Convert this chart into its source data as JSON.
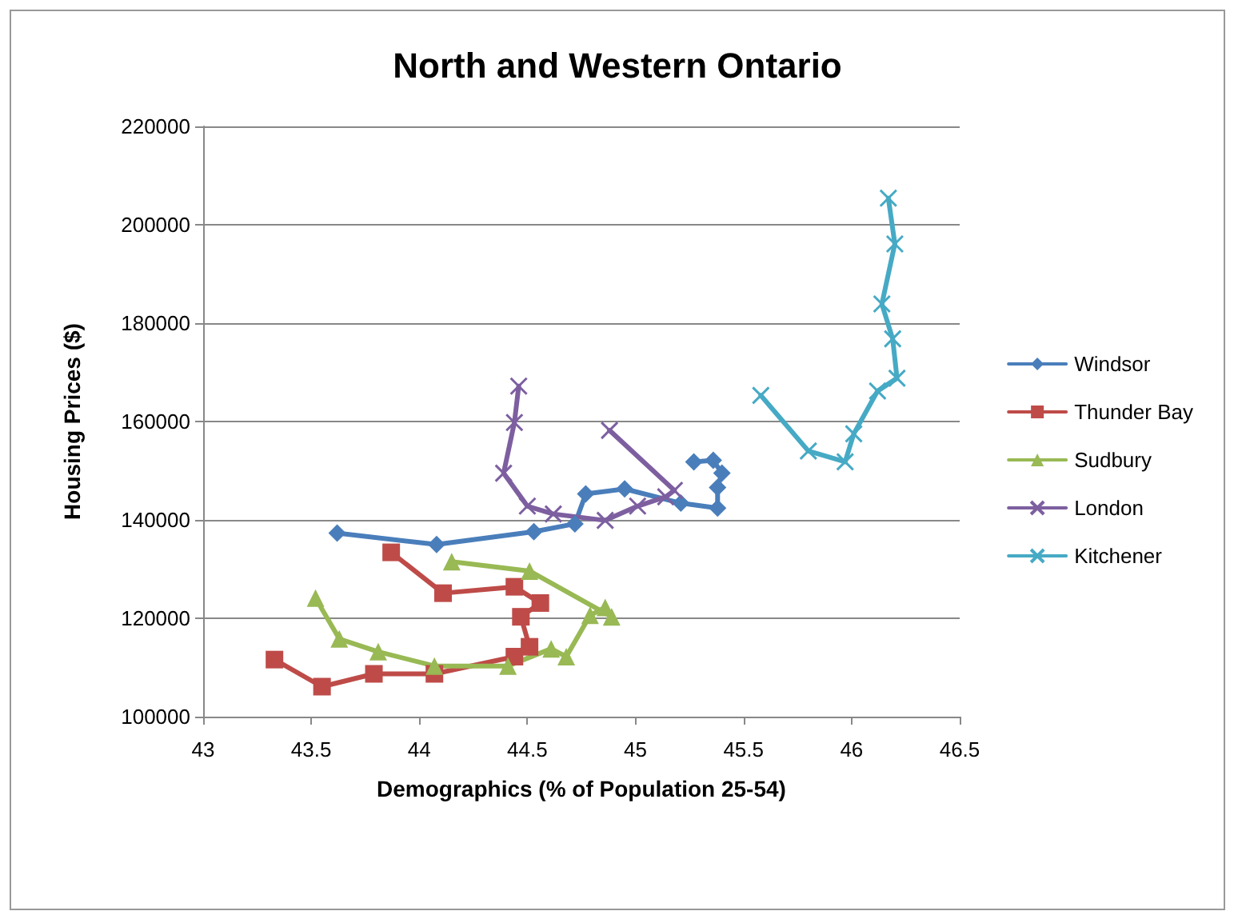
{
  "chart_data": {
    "type": "line",
    "title": "North and Western Ontario",
    "xlabel": "Demographics (% of Population 25-54)",
    "ylabel": "Housing Prices ($)",
    "xlim": [
      43,
      46.5
    ],
    "xticks": [
      43,
      43.5,
      44,
      44.5,
      45,
      45.5,
      46,
      46.5
    ],
    "ylim": [
      100000,
      220000
    ],
    "yticks": [
      100000,
      120000,
      140000,
      160000,
      180000,
      200000,
      220000
    ],
    "grid": "y",
    "legend": "right",
    "series": [
      {
        "name": "Windsor",
        "color": "#4a7ebb",
        "marker": "diamond",
        "x": [
          43.62,
          44.08,
          44.53,
          44.72,
          44.77,
          44.95,
          45.21,
          45.38,
          45.38,
          45.4,
          45.36,
          45.27
        ],
        "values": [
          137300,
          135000,
          137600,
          139200,
          145300,
          146300,
          143400,
          142400,
          146600,
          149500,
          152100,
          151800
        ]
      },
      {
        "name": "Thunder Bay",
        "color": "#be4b48",
        "marker": "square",
        "x": [
          43.33,
          43.55,
          43.79,
          44.07,
          44.44,
          44.51,
          44.47,
          44.56,
          44.44,
          44.11,
          43.87
        ],
        "values": [
          111600,
          106100,
          108700,
          108700,
          112200,
          114200,
          120300,
          123100,
          126400,
          125100,
          133400
        ]
      },
      {
        "name": "Sudbury",
        "color": "#98b954",
        "marker": "triangle",
        "x": [
          43.52,
          43.63,
          43.81,
          44.07,
          44.41,
          44.61,
          44.68,
          44.79,
          44.86,
          44.89,
          44.51,
          44.15
        ],
        "values": [
          124100,
          115800,
          113200,
          110300,
          110300,
          113800,
          112200,
          120600,
          122200,
          120300,
          129600,
          131500
        ]
      },
      {
        "name": "London",
        "color": "#7d5fa0",
        "marker": "cross",
        "x": [
          44.46,
          44.44,
          44.39,
          44.5,
          44.62,
          44.86,
          45.01,
          45.14,
          45.18,
          44.88
        ],
        "values": [
          167200,
          159800,
          149500,
          142800,
          141200,
          139900,
          142800,
          144700,
          146000,
          158200
        ]
      },
      {
        "name": "Kitchener",
        "color": "#46aac5",
        "marker": "cross",
        "x": [
          45.58,
          45.8,
          45.97,
          46.01,
          46.12,
          46.21,
          46.19,
          46.14,
          46.2,
          46.17
        ],
        "values": [
          165300,
          154000,
          151800,
          157500,
          166200,
          168800,
          176800,
          183900,
          196100,
          205400
        ]
      }
    ]
  }
}
